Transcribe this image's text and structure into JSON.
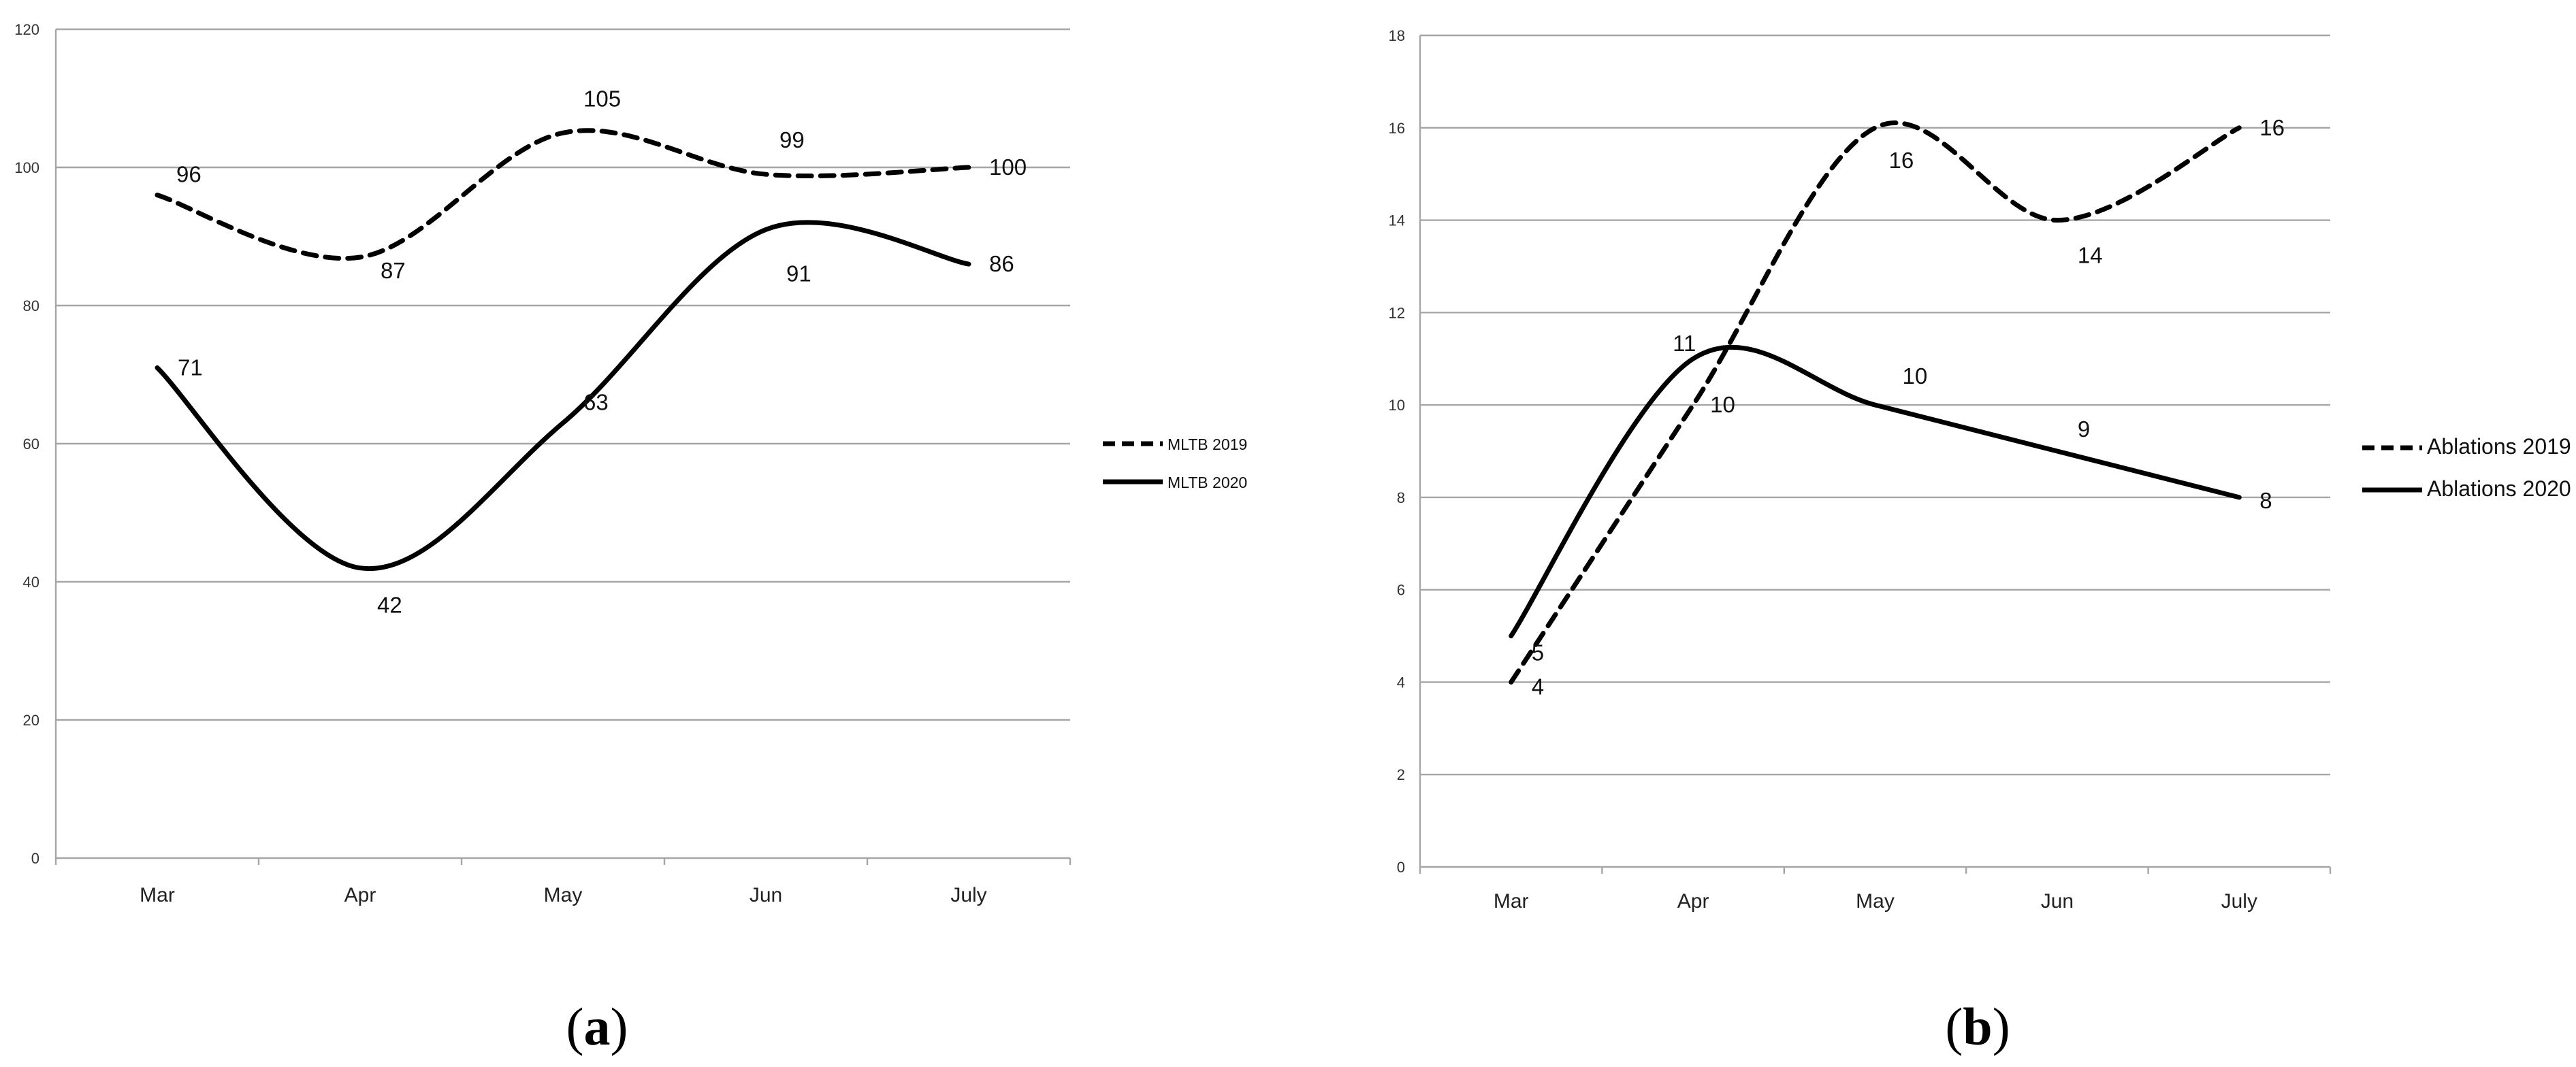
{
  "chart_data": [
    {
      "type": "line",
      "panel_label": "a",
      "categories": [
        "Mar",
        "Apr",
        "May",
        "Jun",
        "July"
      ],
      "ylim": [
        0,
        120
      ],
      "yticks": [
        0,
        20,
        40,
        60,
        80,
        100,
        120
      ],
      "grid": true,
      "legend_position": "right",
      "series": [
        {
          "name": "MLTB 2019",
          "values": [
            96,
            87,
            105,
            99,
            100
          ],
          "style": "dashed",
          "color": "#000000"
        },
        {
          "name": "MLTB 2020",
          "values": [
            71,
            42,
            63,
            91,
            86
          ],
          "style": "solid",
          "color": "#000000"
        }
      ]
    },
    {
      "type": "line",
      "panel_label": "b",
      "categories": [
        "Mar",
        "Apr",
        "May",
        "Jun",
        "July"
      ],
      "ylim": [
        0,
        18
      ],
      "yticks": [
        0,
        2,
        4,
        6,
        8,
        10,
        12,
        14,
        16,
        18
      ],
      "grid": true,
      "legend_position": "right",
      "series": [
        {
          "name": "Ablations 2019",
          "values": [
            4,
            10,
            16,
            14,
            16
          ],
          "style": "dashed",
          "color": "#000000"
        },
        {
          "name": "Ablations 2020",
          "values": [
            5,
            11,
            10,
            9,
            8
          ],
          "style": "solid",
          "color": "#000000"
        }
      ]
    }
  ]
}
